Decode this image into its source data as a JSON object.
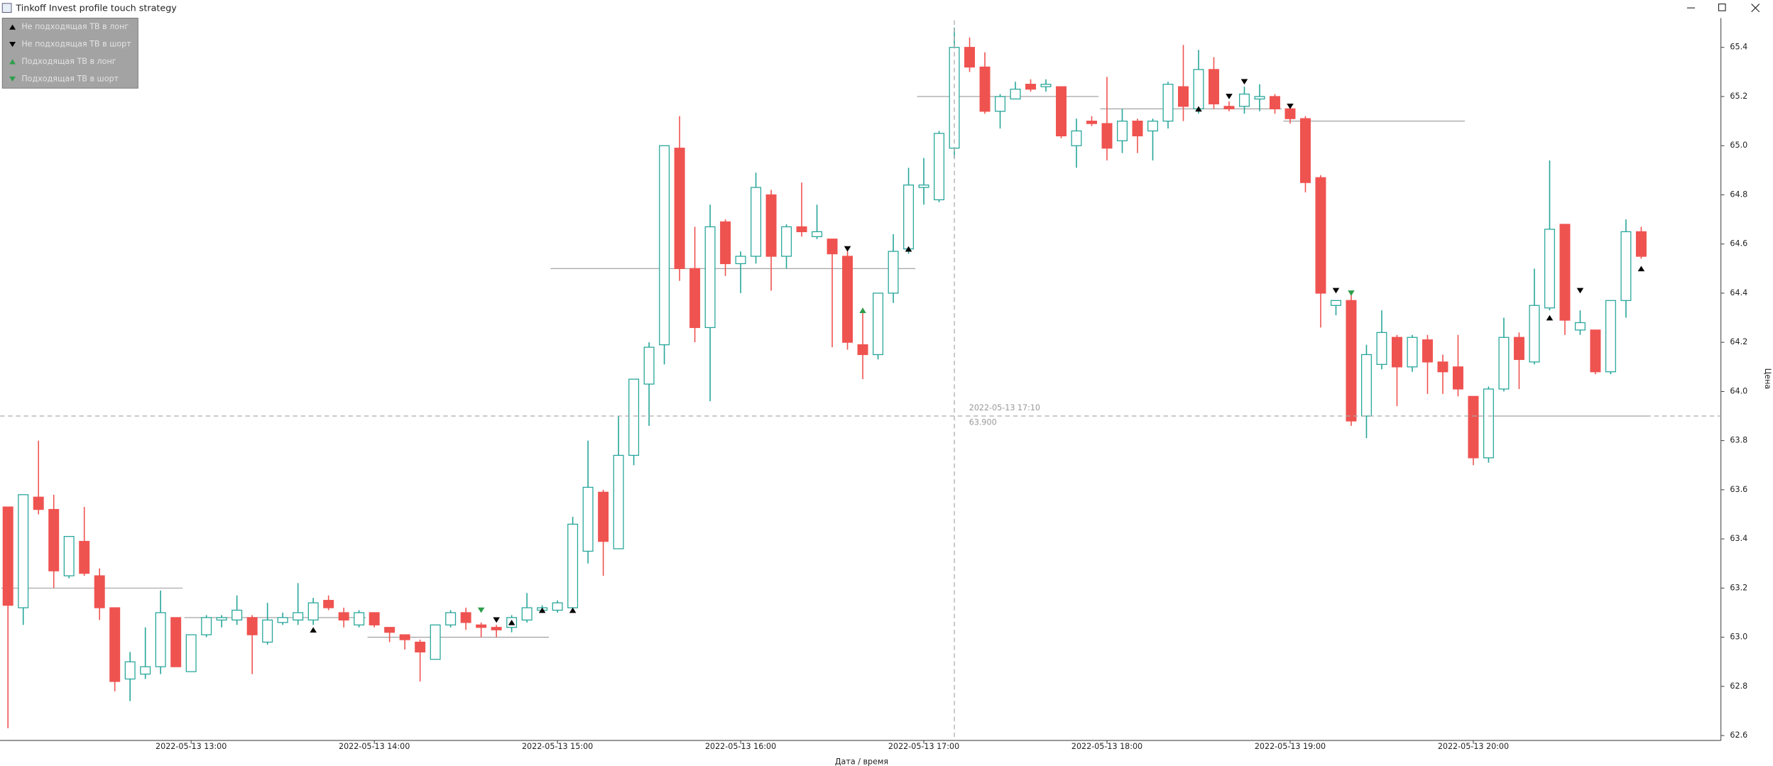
{
  "chart_data": {
    "type": "candlestick",
    "title": "Tinkoff Invest profile touch strategy",
    "x_label": "Дата / время",
    "y_label": "Цена",
    "up_color": "#26a69a",
    "down_color": "#ef5350",
    "grid": false,
    "x": [
      "2022-05-13 12:00",
      "2022-05-13 12:05",
      "2022-05-13 12:10",
      "2022-05-13 12:15",
      "2022-05-13 12:20",
      "2022-05-13 12:25",
      "2022-05-13 12:30",
      "2022-05-13 12:35",
      "2022-05-13 12:40",
      "2022-05-13 12:45",
      "2022-05-13 12:50",
      "2022-05-13 12:55",
      "2022-05-13 13:00",
      "2022-05-13 13:05",
      "2022-05-13 13:10",
      "2022-05-13 13:15",
      "2022-05-13 13:20",
      "2022-05-13 13:25",
      "2022-05-13 13:30",
      "2022-05-13 13:35",
      "2022-05-13 13:40",
      "2022-05-13 13:45",
      "2022-05-13 13:50",
      "2022-05-13 13:55",
      "2022-05-13 14:00",
      "2022-05-13 14:05",
      "2022-05-13 14:10",
      "2022-05-13 14:15",
      "2022-05-13 14:20",
      "2022-05-13 14:25",
      "2022-05-13 14:30",
      "2022-05-13 14:35",
      "2022-05-13 14:40",
      "2022-05-13 14:45",
      "2022-05-13 14:50",
      "2022-05-13 14:55",
      "2022-05-13 15:00",
      "2022-05-13 15:05",
      "2022-05-13 15:10",
      "2022-05-13 15:15",
      "2022-05-13 15:20",
      "2022-05-13 15:25",
      "2022-05-13 15:30",
      "2022-05-13 15:35",
      "2022-05-13 15:40",
      "2022-05-13 15:45",
      "2022-05-13 15:50",
      "2022-05-13 15:55",
      "2022-05-13 16:00",
      "2022-05-13 16:05",
      "2022-05-13 16:10",
      "2022-05-13 16:15",
      "2022-05-13 16:20",
      "2022-05-13 16:25",
      "2022-05-13 16:30",
      "2022-05-13 16:35",
      "2022-05-13 16:40",
      "2022-05-13 16:45",
      "2022-05-13 16:50",
      "2022-05-13 16:55",
      "2022-05-13 17:00",
      "2022-05-13 17:05",
      "2022-05-13 17:10",
      "2022-05-13 17:15",
      "2022-05-13 17:20",
      "2022-05-13 17:25",
      "2022-05-13 17:30",
      "2022-05-13 17:35",
      "2022-05-13 17:40",
      "2022-05-13 17:45",
      "2022-05-13 17:50",
      "2022-05-13 17:55",
      "2022-05-13 18:00",
      "2022-05-13 18:05",
      "2022-05-13 18:10",
      "2022-05-13 18:15",
      "2022-05-13 18:20",
      "2022-05-13 18:25",
      "2022-05-13 18:30",
      "2022-05-13 18:35",
      "2022-05-13 18:40",
      "2022-05-13 18:45",
      "2022-05-13 18:50",
      "2022-05-13 18:55",
      "2022-05-13 19:00",
      "2022-05-13 19:05",
      "2022-05-13 19:10",
      "2022-05-13 19:15",
      "2022-05-13 19:20",
      "2022-05-13 19:25",
      "2022-05-13 19:30",
      "2022-05-13 19:35",
      "2022-05-13 19:40",
      "2022-05-13 19:45",
      "2022-05-13 19:50",
      "2022-05-13 19:55",
      "2022-05-13 20:00",
      "2022-05-13 20:05",
      "2022-05-13 20:10",
      "2022-05-13 20:15",
      "2022-05-13 20:20",
      "2022-05-13 20:25",
      "2022-05-13 20:30",
      "2022-05-13 20:35",
      "2022-05-13 20:40",
      "2022-05-13 20:45",
      "2022-05-13 20:50",
      "2022-05-13 20:55"
    ],
    "open": [
      63.53,
      63.12,
      63.57,
      63.52,
      63.25,
      63.39,
      63.25,
      63.12,
      62.83,
      62.85,
      62.88,
      63.08,
      62.86,
      63.01,
      63.07,
      63.07,
      63.08,
      62.98,
      63.06,
      63.07,
      63.07,
      63.15,
      63.1,
      63.05,
      63.1,
      63.04,
      63.01,
      62.98,
      62.91,
      63.05,
      63.1,
      63.05,
      63.04,
      63.04,
      63.07,
      63.11,
      63.11,
      63.12,
      63.35,
      63.59,
      63.36,
      63.74,
      64.03,
      64.19,
      64.99,
      64.5,
      64.26,
      64.69,
      64.52,
      64.55,
      64.8,
      64.55,
      64.67,
      64.63,
      64.62,
      64.55,
      64.19,
      64.15,
      64.4,
      64.58,
      64.83,
      64.78,
      64.99,
      65.4,
      65.32,
      65.14,
      65.19,
      65.25,
      65.24,
      65.24,
      65.0,
      65.1,
      65.09,
      65.02,
      65.1,
      65.06,
      65.1,
      65.24,
      65.15,
      65.31,
      65.16,
      65.16,
      65.19,
      65.2,
      65.15,
      65.11,
      64.87,
      64.35,
      64.37,
      63.9,
      64.11,
      64.22,
      64.1,
      64.21,
      64.12,
      64.1,
      63.98,
      63.73,
      64.01,
      64.22,
      64.12,
      64.34,
      64.68,
      64.25,
      64.25,
      64.08,
      64.37,
      64.65
    ],
    "high": [
      63.53,
      63.58,
      63.8,
      63.58,
      63.41,
      63.53,
      63.28,
      63.12,
      62.94,
      63.04,
      63.19,
      63.08,
      63.01,
      63.09,
      63.09,
      63.17,
      63.09,
      63.14,
      63.1,
      63.22,
      63.16,
      63.17,
      63.12,
      63.11,
      63.1,
      63.04,
      63.01,
      62.99,
      63.05,
      63.11,
      63.12,
      63.06,
      63.05,
      63.09,
      63.18,
      63.13,
      63.15,
      63.49,
      63.8,
      63.6,
      63.9,
      64.05,
      64.2,
      65.0,
      65.12,
      64.67,
      64.76,
      64.7,
      64.57,
      64.89,
      64.82,
      64.68,
      64.85,
      64.76,
      64.62,
      64.57,
      64.34,
      64.4,
      64.64,
      64.91,
      64.95,
      65.06,
      65.48,
      65.44,
      65.38,
      65.21,
      65.26,
      65.27,
      65.27,
      65.24,
      65.11,
      65.12,
      65.28,
      65.15,
      65.11,
      65.11,
      65.26,
      65.41,
      65.39,
      65.36,
      65.18,
      65.24,
      65.25,
      65.21,
      65.16,
      65.12,
      64.88,
      64.37,
      64.4,
      64.19,
      64.33,
      64.23,
      64.23,
      64.23,
      64.15,
      64.23,
      63.98,
      64.02,
      64.3,
      64.24,
      64.5,
      64.94,
      64.68,
      64.33,
      64.25,
      64.37,
      64.7,
      64.67
    ],
    "low": [
      62.63,
      63.05,
      63.5,
      63.2,
      63.24,
      63.25,
      63.07,
      62.78,
      62.74,
      62.83,
      62.85,
      62.88,
      62.86,
      63.0,
      63.04,
      63.05,
      62.85,
      62.97,
      63.05,
      63.05,
      63.05,
      63.11,
      63.04,
      63.04,
      63.04,
      62.98,
      62.95,
      62.82,
      62.91,
      63.04,
      63.03,
      63.0,
      63.0,
      63.02,
      63.06,
      63.1,
      63.1,
      63.1,
      63.3,
      63.25,
      63.36,
      63.7,
      63.86,
      64.11,
      64.45,
      64.2,
      63.96,
      64.47,
      64.4,
      64.52,
      64.41,
      64.5,
      64.63,
      64.62,
      64.18,
      64.17,
      64.05,
      64.13,
      64.36,
      64.56,
      64.76,
      64.77,
      64.95,
      65.3,
      65.13,
      65.07,
      65.19,
      65.22,
      65.22,
      65.03,
      64.91,
      65.08,
      64.94,
      64.97,
      64.97,
      64.94,
      65.07,
      65.1,
      65.13,
      65.15,
      65.14,
      65.13,
      65.14,
      65.13,
      65.09,
      64.81,
      64.26,
      64.31,
      63.86,
      63.81,
      64.09,
      63.94,
      64.08,
      63.99,
      63.99,
      63.98,
      63.7,
      63.71,
      64.0,
      64.01,
      64.11,
      64.33,
      64.23,
      64.23,
      64.07,
      64.07,
      64.3,
      64.54
    ],
    "close": [
      63.13,
      63.58,
      63.52,
      63.27,
      63.41,
      63.26,
      63.12,
      62.82,
      62.9,
      62.88,
      63.1,
      62.88,
      63.01,
      63.08,
      63.08,
      63.11,
      63.01,
      63.07,
      63.08,
      63.1,
      63.14,
      63.12,
      63.07,
      63.1,
      63.05,
      63.02,
      62.99,
      62.94,
      63.05,
      63.1,
      63.06,
      63.04,
      63.03,
      63.08,
      63.12,
      63.12,
      63.14,
      63.46,
      63.61,
      63.39,
      63.74,
      64.05,
      64.18,
      65.0,
      64.5,
      64.26,
      64.67,
      64.52,
      64.55,
      64.83,
      64.55,
      64.67,
      64.65,
      64.65,
      64.56,
      64.2,
      64.15,
      64.4,
      64.57,
      64.84,
      64.84,
      65.05,
      65.4,
      65.32,
      65.14,
      65.2,
      65.23,
      65.23,
      65.25,
      65.04,
      65.06,
      65.09,
      64.99,
      65.1,
      65.04,
      65.1,
      65.25,
      65.16,
      65.31,
      65.17,
      65.15,
      65.21,
      65.2,
      65.15,
      65.11,
      64.85,
      64.4,
      64.37,
      63.88,
      64.15,
      64.24,
      64.1,
      64.22,
      64.12,
      64.08,
      64.01,
      63.73,
      64.01,
      64.22,
      64.13,
      64.35,
      64.66,
      64.29,
      64.28,
      64.08,
      64.37,
      64.65,
      64.55
    ],
    "series": [
      {
        "name": "Не подходящая ТВ в лонг",
        "color": "#000000",
        "marker": "up",
        "x": [
          "2022-05-13 13:40",
          "2022-05-13 14:45",
          "2022-05-13 14:55",
          "2022-05-13 15:05",
          "2022-05-13 16:55",
          "2022-05-13 18:30",
          "2022-05-13 20:25",
          "2022-05-13 20:55"
        ],
        "values": [
          63.03,
          63.06,
          63.11,
          63.11,
          64.58,
          65.15,
          64.3,
          64.5
        ]
      },
      {
        "name": "Не подходящая ТВ в шорт",
        "color": "#000000",
        "marker": "down",
        "x": [
          "2022-05-13 14:40",
          "2022-05-13 16:35",
          "2022-05-13 18:40",
          "2022-05-13 18:45",
          "2022-05-13 19:00",
          "2022-05-13 19:15",
          "2022-05-13 20:35"
        ],
        "values": [
          63.07,
          64.58,
          65.2,
          65.26,
          65.16,
          64.41,
          64.41
        ]
      },
      {
        "name": "Подходящая ТВ в лонг",
        "color": "#2e9e4a",
        "marker": "up",
        "x": [
          "2022-05-13 16:40"
        ],
        "values": [
          64.33
        ]
      },
      {
        "name": "Подходящая ТВ в шорт",
        "color": "#2e9e4a",
        "marker": "down",
        "x": [
          "2022-05-13 14:35",
          "2022-05-13 19:20"
        ],
        "values": [
          63.11,
          64.4
        ]
      }
    ],
    "levels": [
      {
        "from": "2022-05-13 12:00",
        "to": "2022-05-13 12:55",
        "value": 63.2
      },
      {
        "from": "2022-05-13 13:00",
        "to": "2022-05-13 13:55",
        "value": 63.08
      },
      {
        "from": "2022-05-13 14:00",
        "to": "2022-05-13 14:55",
        "value": 63.0
      },
      {
        "from": "2022-05-13 15:00",
        "to": "2022-05-13 16:55",
        "value": 64.5
      },
      {
        "from": "2022-05-13 17:00",
        "to": "2022-05-13 17:55",
        "value": 65.2
      },
      {
        "from": "2022-05-13 18:00",
        "to": "2022-05-13 18:55",
        "value": 65.15
      },
      {
        "from": "2022-05-13 19:00",
        "to": "2022-05-13 19:55",
        "value": 65.1
      },
      {
        "from": "2022-05-13 20:00",
        "to": "2022-05-13 20:55",
        "value": 63.9
      }
    ],
    "crosshair": {
      "x": "2022-05-13 17:10",
      "y": {
        "value": 63.9,
        "label": "63.900"
      }
    },
    "ylim": [
      62.58,
      65.51
    ],
    "yticks": [
      62.6,
      62.8,
      {
        "value": 63,
        "label": "63.0"
      },
      63.2,
      63.4,
      63.6,
      63.8,
      {
        "value": 64,
        "label": "64.0"
      },
      64.2,
      64.4,
      64.6,
      64.8,
      {
        "value": 65,
        "label": "65.0"
      },
      65.2,
      65.4
    ],
    "xticks": [
      "2022-05-13 13:00",
      "2022-05-13 14:00",
      "2022-05-13 15:00",
      "2022-05-13 16:00",
      "2022-05-13 17:00",
      "2022-05-13 18:00",
      "2022-05-13 19:00",
      "2022-05-13 20:00"
    ],
    "legend": "upper left"
  }
}
